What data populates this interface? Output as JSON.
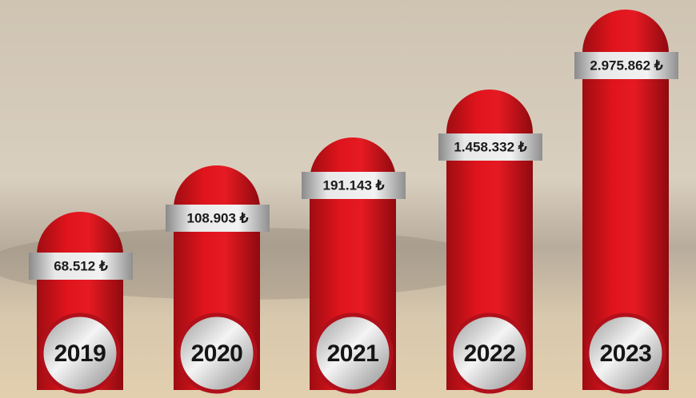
{
  "items": [
    {
      "year": "2019",
      "amount": "68.512 ₺"
    },
    {
      "year": "2020",
      "amount": "108.903 ₺"
    },
    {
      "year": "2021",
      "amount": "191.143 ₺"
    },
    {
      "year": "2022",
      "amount": "1.458.332 ₺"
    },
    {
      "year": "2023",
      "amount": "2.975.862 ₺"
    }
  ]
}
